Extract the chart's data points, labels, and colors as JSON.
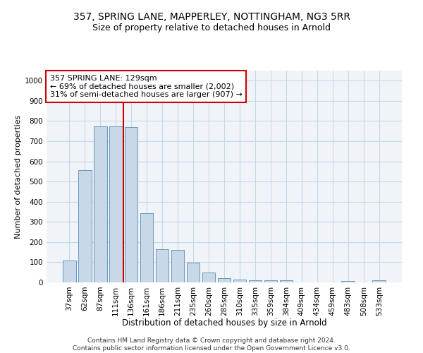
{
  "title1": "357, SPRING LANE, MAPPERLEY, NOTTINGHAM, NG3 5RR",
  "title2": "Size of property relative to detached houses in Arnold",
  "xlabel": "Distribution of detached houses by size in Arnold",
  "ylabel": "Number of detached properties",
  "categories": [
    "37sqm",
    "62sqm",
    "87sqm",
    "111sqm",
    "136sqm",
    "161sqm",
    "186sqm",
    "211sqm",
    "235sqm",
    "260sqm",
    "285sqm",
    "310sqm",
    "335sqm",
    "359sqm",
    "384sqm",
    "409sqm",
    "434sqm",
    "459sqm",
    "483sqm",
    "508sqm",
    "533sqm"
  ],
  "values": [
    110,
    555,
    775,
    775,
    770,
    343,
    163,
    160,
    97,
    50,
    22,
    14,
    10,
    10,
    9,
    0,
    0,
    0,
    8,
    0,
    10
  ],
  "bar_color": "#c8d8e8",
  "bar_edge_color": "#6699bb",
  "vline_index": 4,
  "vline_color": "#cc0000",
  "annotation_text": "357 SPRING LANE: 129sqm\n← 69% of detached houses are smaller (2,002)\n31% of semi-detached houses are larger (907) →",
  "annotation_box_color": "#ffffff",
  "annotation_box_edge_color": "#cc0000",
  "ylim": [
    0,
    1050
  ],
  "yticks": [
    0,
    100,
    200,
    300,
    400,
    500,
    600,
    700,
    800,
    900,
    1000
  ],
  "grid_color": "#c8d8e8",
  "footer1": "Contains HM Land Registry data © Crown copyright and database right 2024.",
  "footer2": "Contains public sector information licensed under the Open Government Licence v3.0.",
  "title1_fontsize": 10,
  "title2_fontsize": 9,
  "xlabel_fontsize": 8.5,
  "ylabel_fontsize": 8,
  "tick_fontsize": 7.5,
  "annotation_fontsize": 8,
  "footer_fontsize": 6.5,
  "bg_color": "#f0f4f8"
}
